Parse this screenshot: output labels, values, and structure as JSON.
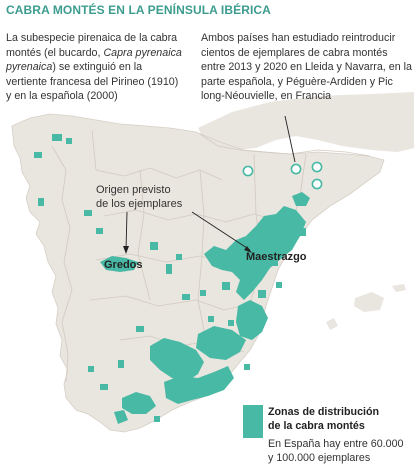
{
  "title": "CABRA MONTÉS EN LA PENÍNSULA IBÉRICA",
  "intro_left": {
    "before": "La subespecie pirenaica de la cabra montés (el bucardo, ",
    "species": "Capra pyrenaica pyrenaica",
    "after": ") se extinguió en la vertiente francesa del Pirineo (1910) y en la española (2000)"
  },
  "intro_right": "Ambos países han estudiado reintroducir cientos de ejemplares de cabra montés entre 2013 y 2020 en Lleida y Navarra, en la parte española, y Péguère-Ardiden y Pic long-Néouvielle, en Francia",
  "annotation": {
    "line1": "Origen previsto",
    "line2": "de los ejemplares"
  },
  "places": {
    "gredos": "Gredos",
    "maestrazgo": "Maestrazgo"
  },
  "legend": {
    "title_line1": "Zonas de distribución",
    "title_line2": "de la cabra montés",
    "note_line1": "En España hay entre 60.000",
    "note_line2": "y 100.000 ejemplares"
  },
  "colors": {
    "title": "#3c9c8e",
    "land": "#e9e5df",
    "sea": "#ffffff",
    "borders": "#d6cfc6",
    "distribution": "#48b9a4",
    "reintroduction_marker": "#48b9a4"
  }
}
